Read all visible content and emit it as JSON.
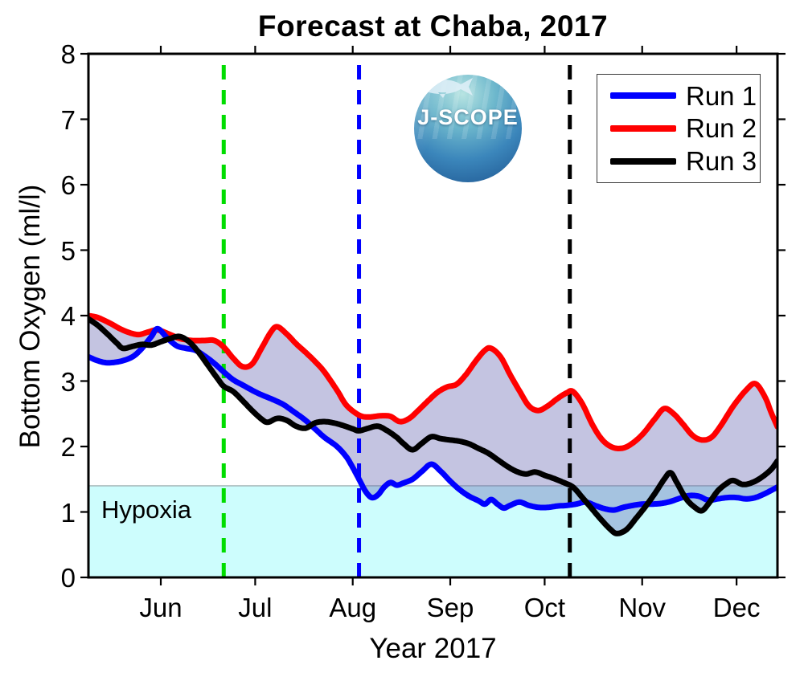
{
  "figure": {
    "title": "Forecast at Chaba, 2017",
    "background": "#ffffff"
  },
  "logo": {
    "text": "J-SCOPE"
  },
  "legend": {
    "items": [
      {
        "label": "Run 1",
        "color": "#0000ff"
      },
      {
        "label": "Run 2",
        "color": "#ff0000"
      },
      {
        "label": "Run 3",
        "color": "#000000"
      }
    ]
  },
  "hypoxia": {
    "label": "Hypoxia"
  },
  "chart_data": {
    "type": "line",
    "title": "Forecast at Chaba, 2017",
    "xlabel": "Year 2017",
    "ylabel": "Bottom Oxygen (ml/l)",
    "x_unit": "day_of_year_2017",
    "xlim": [
      129,
      348
    ],
    "ylim": [
      0,
      8
    ],
    "grid": false,
    "yticks": [
      0,
      1,
      2,
      3,
      4,
      5,
      6,
      7,
      8
    ],
    "xticks": [
      {
        "day": 152,
        "label": "Jun"
      },
      {
        "day": 182,
        "label": "Jul"
      },
      {
        "day": 213,
        "label": "Aug"
      },
      {
        "day": 244,
        "label": "Sep"
      },
      {
        "day": 274,
        "label": "Oct"
      },
      {
        "day": 305,
        "label": "Nov"
      },
      {
        "day": 335,
        "label": "Dec"
      }
    ],
    "hypoxia_threshold": 1.4,
    "hypoxia_fill": "#cdfdfd",
    "band_fill": "rgba(100,100,175,0.38)",
    "vlines": [
      {
        "day": 172,
        "color": "#00dd00",
        "style": "dashed"
      },
      {
        "day": 215,
        "color": "#0000ff",
        "style": "dashed"
      },
      {
        "day": 282,
        "color": "#000000",
        "style": "dashed"
      }
    ],
    "legend_position": "top-right",
    "series": [
      {
        "name": "Run 1",
        "color": "#0000ff",
        "points": [
          [
            129,
            3.37
          ],
          [
            132,
            3.31
          ],
          [
            135,
            3.28
          ],
          [
            139,
            3.3
          ],
          [
            143,
            3.37
          ],
          [
            146,
            3.5
          ],
          [
            149,
            3.68
          ],
          [
            151,
            3.8
          ],
          [
            154,
            3.66
          ],
          [
            157,
            3.54
          ],
          [
            160,
            3.5
          ],
          [
            163,
            3.47
          ],
          [
            166,
            3.38
          ],
          [
            169,
            3.27
          ],
          [
            172,
            3.14
          ],
          [
            175,
            3.02
          ],
          [
            178,
            2.94
          ],
          [
            181,
            2.86
          ],
          [
            184,
            2.79
          ],
          [
            188,
            2.71
          ],
          [
            191,
            2.64
          ],
          [
            194,
            2.54
          ],
          [
            198,
            2.4
          ],
          [
            201,
            2.27
          ],
          [
            204,
            2.14
          ],
          [
            208,
            2.0
          ],
          [
            211,
            1.84
          ],
          [
            213,
            1.68
          ],
          [
            215,
            1.5
          ],
          [
            217,
            1.32
          ],
          [
            219,
            1.22
          ],
          [
            221,
            1.26
          ],
          [
            223,
            1.38
          ],
          [
            225,
            1.45
          ],
          [
            227,
            1.41
          ],
          [
            229,
            1.44
          ],
          [
            232,
            1.5
          ],
          [
            235,
            1.62
          ],
          [
            238,
            1.73
          ],
          [
            241,
            1.62
          ],
          [
            244,
            1.47
          ],
          [
            247,
            1.34
          ],
          [
            250,
            1.24
          ],
          [
            253,
            1.17
          ],
          [
            255,
            1.12
          ],
          [
            257,
            1.19
          ],
          [
            259,
            1.12
          ],
          [
            261,
            1.06
          ],
          [
            263,
            1.1
          ],
          [
            266,
            1.15
          ],
          [
            269,
            1.1
          ],
          [
            272,
            1.07
          ],
          [
            275,
            1.07
          ],
          [
            278,
            1.09
          ],
          [
            281,
            1.1
          ],
          [
            284,
            1.12
          ],
          [
            287,
            1.15
          ],
          [
            290,
            1.1
          ],
          [
            293,
            1.05
          ],
          [
            296,
            1.03
          ],
          [
            299,
            1.07
          ],
          [
            302,
            1.1
          ],
          [
            305,
            1.12
          ],
          [
            308,
            1.12
          ],
          [
            311,
            1.13
          ],
          [
            314,
            1.16
          ],
          [
            317,
            1.21
          ],
          [
            320,
            1.25
          ],
          [
            323,
            1.24
          ],
          [
            326,
            1.18
          ],
          [
            329,
            1.2
          ],
          [
            332,
            1.22
          ],
          [
            335,
            1.22
          ],
          [
            338,
            1.2
          ],
          [
            341,
            1.22
          ],
          [
            344,
            1.28
          ],
          [
            348,
            1.38
          ]
        ]
      },
      {
        "name": "Run 2",
        "color": "#ff0000",
        "points": [
          [
            129,
            4.0
          ],
          [
            132,
            3.97
          ],
          [
            136,
            3.88
          ],
          [
            139,
            3.8
          ],
          [
            142,
            3.74
          ],
          [
            145,
            3.71
          ],
          [
            148,
            3.75
          ],
          [
            151,
            3.78
          ],
          [
            155,
            3.71
          ],
          [
            158,
            3.65
          ],
          [
            162,
            3.62
          ],
          [
            166,
            3.62
          ],
          [
            169,
            3.62
          ],
          [
            172,
            3.52
          ],
          [
            175,
            3.35
          ],
          [
            178,
            3.22
          ],
          [
            181,
            3.26
          ],
          [
            184,
            3.5
          ],
          [
            187,
            3.75
          ],
          [
            189,
            3.83
          ],
          [
            192,
            3.72
          ],
          [
            195,
            3.57
          ],
          [
            198,
            3.44
          ],
          [
            201,
            3.3
          ],
          [
            204,
            3.14
          ],
          [
            208,
            2.86
          ],
          [
            211,
            2.63
          ],
          [
            215,
            2.48
          ],
          [
            218,
            2.45
          ],
          [
            222,
            2.47
          ],
          [
            225,
            2.46
          ],
          [
            228,
            2.38
          ],
          [
            231,
            2.43
          ],
          [
            234,
            2.56
          ],
          [
            237,
            2.7
          ],
          [
            240,
            2.83
          ],
          [
            243,
            2.91
          ],
          [
            246,
            2.95
          ],
          [
            249,
            3.1
          ],
          [
            252,
            3.3
          ],
          [
            255,
            3.47
          ],
          [
            257,
            3.5
          ],
          [
            260,
            3.37
          ],
          [
            263,
            3.1
          ],
          [
            266,
            2.85
          ],
          [
            269,
            2.62
          ],
          [
            272,
            2.55
          ],
          [
            275,
            2.62
          ],
          [
            278,
            2.73
          ],
          [
            281,
            2.82
          ],
          [
            283,
            2.84
          ],
          [
            286,
            2.65
          ],
          [
            289,
            2.35
          ],
          [
            292,
            2.12
          ],
          [
            295,
            2.0
          ],
          [
            298,
            1.97
          ],
          [
            301,
            2.02
          ],
          [
            305,
            2.18
          ],
          [
            309,
            2.42
          ],
          [
            312,
            2.58
          ],
          [
            315,
            2.5
          ],
          [
            318,
            2.34
          ],
          [
            321,
            2.17
          ],
          [
            324,
            2.1
          ],
          [
            327,
            2.14
          ],
          [
            330,
            2.32
          ],
          [
            334,
            2.62
          ],
          [
            338,
            2.86
          ],
          [
            341,
            2.96
          ],
          [
            344,
            2.76
          ],
          [
            346,
            2.52
          ],
          [
            348,
            2.3
          ]
        ]
      },
      {
        "name": "Run 3",
        "color": "#000000",
        "points": [
          [
            129,
            3.95
          ],
          [
            132,
            3.85
          ],
          [
            135,
            3.72
          ],
          [
            138,
            3.58
          ],
          [
            140,
            3.5
          ],
          [
            143,
            3.53
          ],
          [
            146,
            3.56
          ],
          [
            149,
            3.55
          ],
          [
            152,
            3.6
          ],
          [
            155,
            3.65
          ],
          [
            158,
            3.68
          ],
          [
            161,
            3.6
          ],
          [
            164,
            3.44
          ],
          [
            167,
            3.24
          ],
          [
            170,
            3.04
          ],
          [
            172,
            2.92
          ],
          [
            175,
            2.84
          ],
          [
            178,
            2.7
          ],
          [
            181,
            2.55
          ],
          [
            184,
            2.42
          ],
          [
            186,
            2.37
          ],
          [
            189,
            2.43
          ],
          [
            192,
            2.4
          ],
          [
            195,
            2.31
          ],
          [
            198,
            2.28
          ],
          [
            201,
            2.36
          ],
          [
            204,
            2.38
          ],
          [
            207,
            2.36
          ],
          [
            210,
            2.32
          ],
          [
            213,
            2.27
          ],
          [
            215,
            2.24
          ],
          [
            218,
            2.28
          ],
          [
            221,
            2.31
          ],
          [
            224,
            2.24
          ],
          [
            227,
            2.14
          ],
          [
            229,
            2.05
          ],
          [
            232,
            1.95
          ],
          [
            235,
            2.05
          ],
          [
            238,
            2.15
          ],
          [
            241,
            2.12
          ],
          [
            244,
            2.1
          ],
          [
            247,
            2.08
          ],
          [
            250,
            2.04
          ],
          [
            253,
            1.97
          ],
          [
            256,
            1.9
          ],
          [
            259,
            1.8
          ],
          [
            262,
            1.7
          ],
          [
            265,
            1.62
          ],
          [
            268,
            1.58
          ],
          [
            271,
            1.61
          ],
          [
            274,
            1.56
          ],
          [
            277,
            1.51
          ],
          [
            280,
            1.45
          ],
          [
            283,
            1.38
          ],
          [
            286,
            1.22
          ],
          [
            289,
            1.05
          ],
          [
            292,
            0.88
          ],
          [
            295,
            0.73
          ],
          [
            297,
            0.67
          ],
          [
            300,
            0.73
          ],
          [
            303,
            0.9
          ],
          [
            306,
            1.08
          ],
          [
            309,
            1.28
          ],
          [
            312,
            1.5
          ],
          [
            314,
            1.6
          ],
          [
            316,
            1.45
          ],
          [
            319,
            1.2
          ],
          [
            322,
            1.06
          ],
          [
            324,
            1.02
          ],
          [
            326,
            1.12
          ],
          [
            329,
            1.32
          ],
          [
            332,
            1.44
          ],
          [
            334,
            1.48
          ],
          [
            337,
            1.42
          ],
          [
            340,
            1.45
          ],
          [
            343,
            1.53
          ],
          [
            346,
            1.65
          ],
          [
            348,
            1.78
          ]
        ]
      }
    ],
    "annotations": [
      {
        "text": "Hypoxia",
        "x_day": 133,
        "y_value": 1.0
      }
    ]
  }
}
